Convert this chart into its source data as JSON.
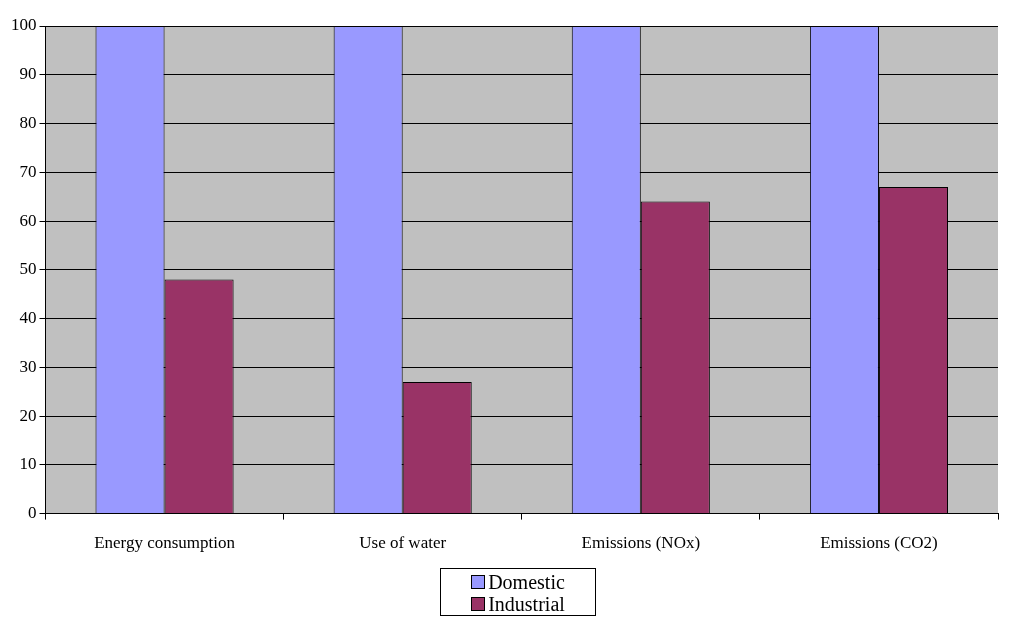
{
  "chart_data": {
    "type": "bar",
    "categories": [
      "Energy consumption",
      "Use of water",
      "Emissions (NOx)",
      "Emissions (CO2)"
    ],
    "series": [
      {
        "name": "Domestic",
        "color": "#9999ff",
        "values": [
          100,
          100,
          100,
          100
        ]
      },
      {
        "name": "Industrial",
        "color": "#993366",
        "values": [
          48,
          27,
          64,
          67
        ]
      }
    ],
    "ylim": [
      0,
      100
    ],
    "yticks": [
      0,
      10,
      20,
      30,
      40,
      50,
      60,
      70,
      80,
      90,
      100
    ],
    "grid": "y",
    "legend": "bottom"
  }
}
